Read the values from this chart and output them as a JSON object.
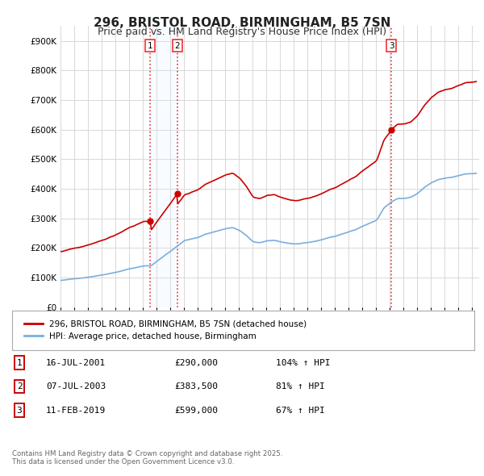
{
  "title": "296, BRISTOL ROAD, BIRMINGHAM, B5 7SN",
  "subtitle": "Price paid vs. HM Land Registry's House Price Index (HPI)",
  "title_fontsize": 11,
  "subtitle_fontsize": 9,
  "background_color": "#ffffff",
  "plot_bg_color": "#ffffff",
  "grid_color": "#d8d8d8",
  "sale_dates_year": [
    2001.542,
    2003.511,
    2019.115
  ],
  "sale_prices": [
    290000,
    383500,
    599000
  ],
  "sale_labels": [
    "1",
    "2",
    "3"
  ],
  "vline_color": "#ee3333",
  "highlight_color": "#ddeeff",
  "red_line_color": "#cc0000",
  "blue_line_color": "#7aaedc",
  "legend_label_red": "296, BRISTOL ROAD, BIRMINGHAM, B5 7SN (detached house)",
  "legend_label_blue": "HPI: Average price, detached house, Birmingham",
  "footer": "Contains HM Land Registry data © Crown copyright and database right 2025.\nThis data is licensed under the Open Government Licence v3.0.",
  "table_rows": [
    [
      "1",
      "16-JUL-2001",
      "£290,000",
      "104% ↑ HPI"
    ],
    [
      "2",
      "07-JUL-2003",
      "£383,500",
      "81% ↑ HPI"
    ],
    [
      "3",
      "11-FEB-2019",
      "£599,000",
      "67% ↑ HPI"
    ]
  ],
  "ylim": [
    0,
    950000
  ],
  "yticks": [
    0,
    100000,
    200000,
    300000,
    400000,
    500000,
    600000,
    700000,
    800000,
    900000
  ],
  "ytick_labels": [
    "£0",
    "£100K",
    "£200K",
    "£300K",
    "£400K",
    "£500K",
    "£600K",
    "£700K",
    "£800K",
    "£900K"
  ],
  "x_min": 1995.0,
  "x_max": 2025.5
}
